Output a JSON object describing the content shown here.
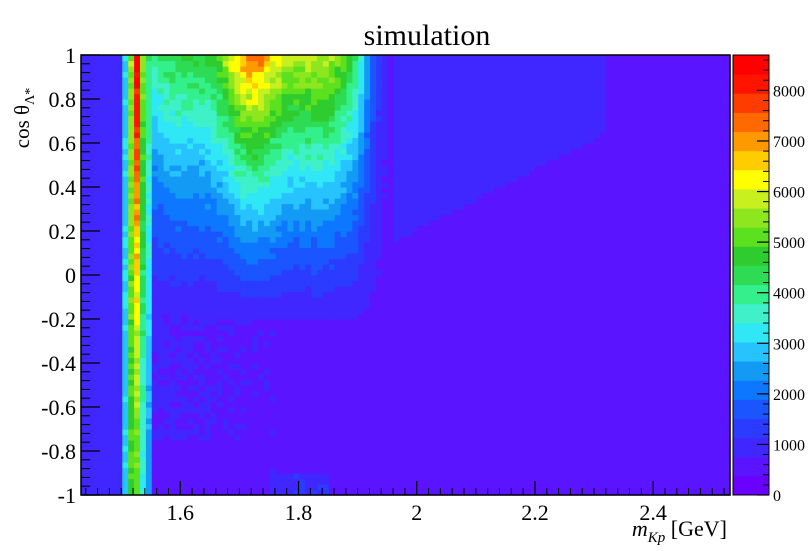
{
  "chart_data": {
    "type": "heatmap",
    "title": "simulation",
    "xlabel": {
      "var": "m",
      "sub": "Kp",
      "unit": " [GeV]"
    },
    "ylabel": {
      "main": "cos θ",
      "sub": "Λ*"
    },
    "xlim": [
      1.432,
      2.53
    ],
    "ylim": [
      -1,
      1
    ],
    "x_ticks": [
      1.6,
      1.8,
      2.0,
      2.2,
      2.4
    ],
    "x_tick_labels": [
      "1.6",
      "1.8",
      "2",
      "2.2",
      "2.4"
    ],
    "y_ticks": [
      -1,
      -0.8,
      -0.6,
      -0.4,
      -0.2,
      0,
      0.2,
      0.4,
      0.6,
      0.8,
      1
    ],
    "y_tick_labels": [
      "-1",
      "-0.8",
      "-0.6",
      "-0.4",
      "-0.2",
      "0",
      "0.2",
      "0.4",
      "0.6",
      "0.8",
      "1"
    ],
    "zlim": [
      0,
      8700
    ],
    "z_ticks": [
      0,
      1000,
      2000,
      3000,
      4000,
      5000,
      6000,
      7000,
      8000
    ],
    "z_tick_labels": [
      "0",
      "1000",
      "2000",
      "3000",
      "4000",
      "5000",
      "6000",
      "7000",
      "8000"
    ],
    "palette": [
      "#6a00ff",
      "#5a14ff",
      "#4026ff",
      "#2b3bff",
      "#1a55ff",
      "#0d78ff",
      "#129af5",
      "#26c3ff",
      "#30e8f5",
      "#3ff0c8",
      "#33f08c",
      "#2ddc52",
      "#2ecc2e",
      "#5ce11e",
      "#8ee61e",
      "#c8f01e",
      "#ffff00",
      "#ffcc00",
      "#ff9900",
      "#ff6a00",
      "#ff3c00",
      "#ff1400",
      "#ff0000"
    ],
    "bins": {
      "nx": 110,
      "ny": 80
    },
    "regions": [
      {
        "desc": "baseline",
        "value": 900
      },
      {
        "desc": "Lambda(1520) narrow band",
        "x": [
          1.51,
          1.535
        ],
        "value_range": [
          4500,
          8700
        ]
      },
      {
        "desc": "broad enhancement 1.6-1.95 GeV at high cos",
        "x": [
          1.55,
          1.95
        ],
        "y": [
          -0.2,
          1
        ],
        "value_range": [
          1200,
          5500
        ]
      },
      {
        "desc": "low-density region at high mass",
        "x": [
          1.95,
          2.53
        ],
        "y": [
          -1,
          0.7
        ],
        "value": 400
      }
    ]
  }
}
